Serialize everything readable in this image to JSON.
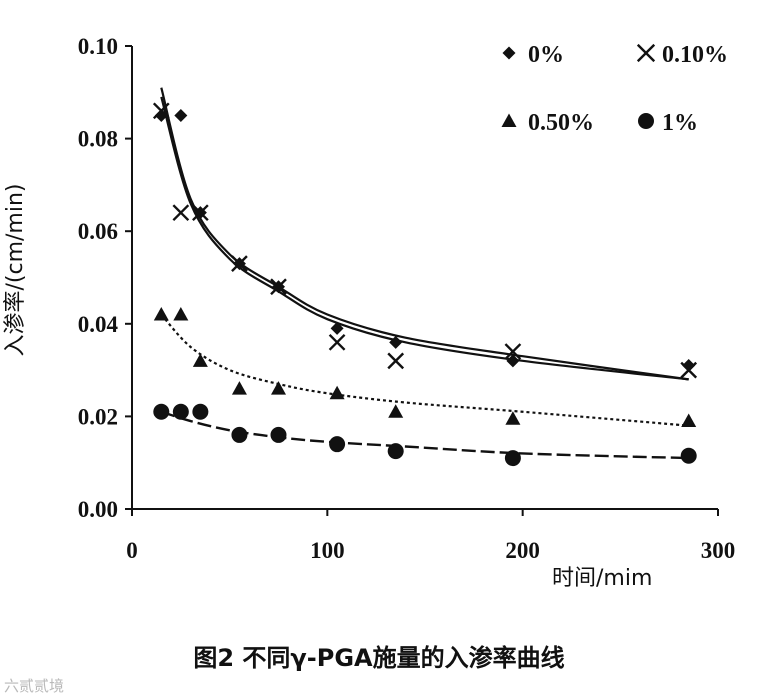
{
  "chart_data": {
    "type": "scatter",
    "xlabel": "时间/mim",
    "ylabel": "入渗率/(cm/min)",
    "xlim": [
      0,
      300
    ],
    "ylim": [
      0,
      0.1
    ],
    "xticks": [
      "0",
      "100",
      "200",
      "300"
    ],
    "yticks": [
      "0.00",
      "0.02",
      "0.04",
      "0.06",
      "0.08",
      "0.10"
    ],
    "grid": false,
    "legend_position": "top-right",
    "series": [
      {
        "name": "0%",
        "marker": "diamond",
        "x": [
          15,
          25,
          35,
          55,
          75,
          105,
          135,
          195,
          285
        ],
        "y": [
          0.085,
          0.085,
          0.064,
          0.053,
          0.048,
          0.039,
          0.036,
          0.032,
          0.031
        ],
        "fit": [
          [
            15,
            0.091
          ],
          [
            30,
            0.067
          ],
          [
            50,
            0.055
          ],
          [
            75,
            0.048
          ],
          [
            100,
            0.042
          ],
          [
            140,
            0.037
          ],
          [
            200,
            0.033
          ],
          [
            285,
            0.028
          ]
        ]
      },
      {
        "name": "0.10%",
        "marker": "x",
        "x": [
          15,
          25,
          35,
          55,
          75,
          105,
          135,
          195,
          285
        ],
        "y": [
          0.086,
          0.064,
          0.064,
          0.053,
          0.048,
          0.036,
          0.032,
          0.034,
          0.03
        ],
        "fit": [
          [
            15,
            0.089
          ],
          [
            30,
            0.066
          ],
          [
            50,
            0.054
          ],
          [
            75,
            0.047
          ],
          [
            100,
            0.041
          ],
          [
            140,
            0.036
          ],
          [
            200,
            0.032
          ],
          [
            285,
            0.028
          ]
        ]
      },
      {
        "name": "0.50%",
        "marker": "triangle",
        "x": [
          15,
          25,
          35,
          55,
          75,
          105,
          135,
          195,
          285
        ],
        "y": [
          0.042,
          0.042,
          0.032,
          0.026,
          0.026,
          0.025,
          0.021,
          0.0195,
          0.019
        ],
        "fit": [
          [
            15,
            0.042
          ],
          [
            30,
            0.035
          ],
          [
            50,
            0.03
          ],
          [
            75,
            0.027
          ],
          [
            100,
            0.025
          ],
          [
            140,
            0.023
          ],
          [
            200,
            0.021
          ],
          [
            285,
            0.018
          ]
        ]
      },
      {
        "name": "1%",
        "marker": "circle",
        "x": [
          15,
          25,
          35,
          55,
          75,
          105,
          135,
          195,
          285
        ],
        "y": [
          0.021,
          0.021,
          0.021,
          0.016,
          0.016,
          0.014,
          0.0125,
          0.011,
          0.0115
        ],
        "fit": [
          [
            15,
            0.021
          ],
          [
            30,
            0.019
          ],
          [
            50,
            0.017
          ],
          [
            75,
            0.0155
          ],
          [
            100,
            0.0145
          ],
          [
            140,
            0.0135
          ],
          [
            200,
            0.012
          ],
          [
            285,
            0.011
          ]
        ]
      }
    ]
  },
  "caption": "图2 不同γ-PGA施量的入渗率曲线",
  "watermark": "六贰贰境"
}
